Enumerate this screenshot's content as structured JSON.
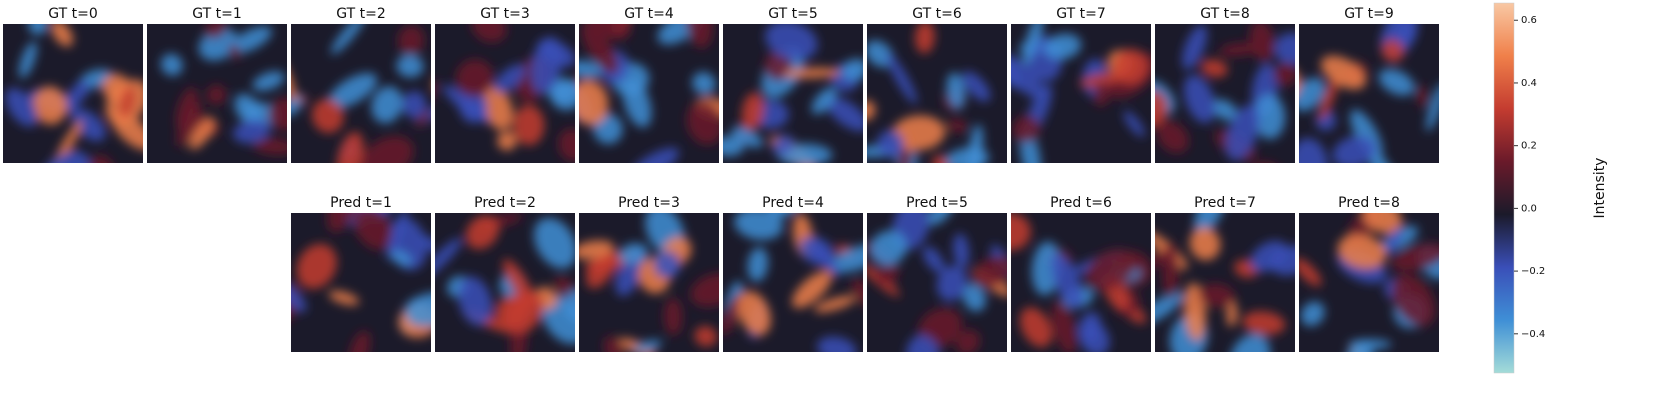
{
  "chart_data": {
    "type": "heatmap",
    "rows": [
      {
        "titles": [
          "GT t=0",
          "GT t=1",
          "GT t=2",
          "GT t=3",
          "GT t=4",
          "GT t=5",
          "GT t=6",
          "GT t=7",
          "GT t=8",
          "GT t=9"
        ]
      },
      {
        "titles": [
          "Pred t=1",
          "Pred t=2",
          "Pred t=3",
          "Pred t=4",
          "Pred t=5",
          "Pred t=6",
          "Pred t=7",
          "Pred t=8"
        ]
      }
    ],
    "colorbar": {
      "label": "Intensity",
      "lim": [
        -0.525,
        0.655
      ],
      "ticks": [
        {
          "value": -0.4,
          "label": "−0.4"
        },
        {
          "value": -0.2,
          "label": "−0.2"
        },
        {
          "value": 0,
          "label": "0.0"
        },
        0.2,
        0.4,
        0.6
      ],
      "colors": [
        "#a4dcd8",
        "#3f8fd6",
        "#3a4fb8",
        "#1b1a2a",
        "#6a1a2a",
        "#c43c30",
        "#f0804a",
        "#f8c8a4"
      ]
    }
  }
}
